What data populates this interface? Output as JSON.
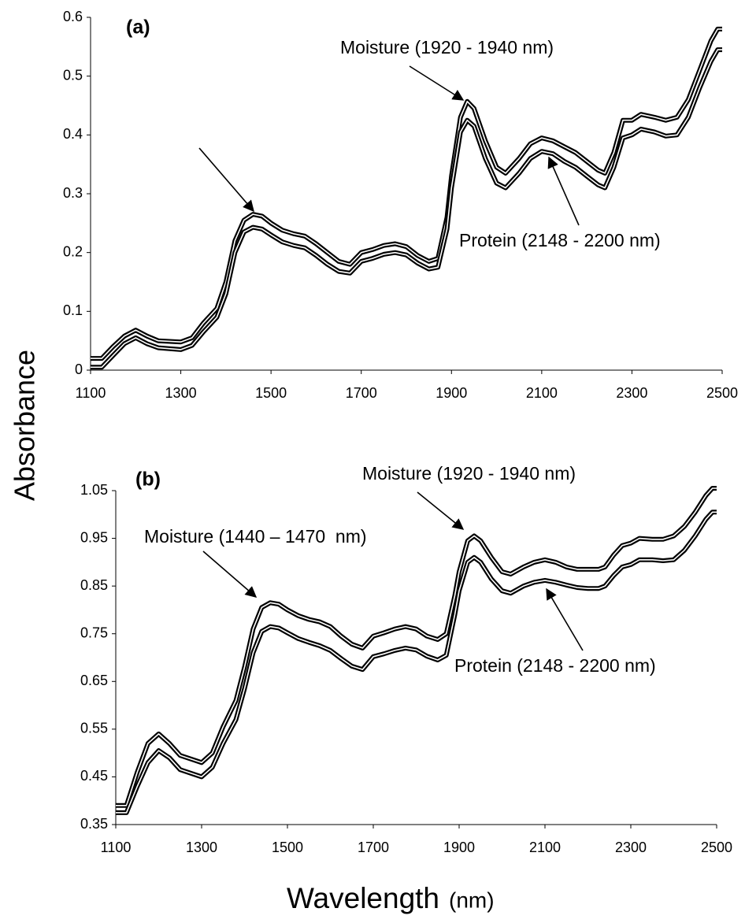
{
  "ylabel": "Absorbance",
  "xlabel": "Wavelength",
  "xlabel_unit": "(nm)",
  "chart_data": [
    {
      "type": "line",
      "title": "(a)",
      "annotations": [
        "Moisture (1920 - 1940 nm)",
        "Protein (2148 - 2200 nm)"
      ],
      "x": [
        1100,
        1125,
        1150,
        1175,
        1200,
        1225,
        1250,
        1300,
        1325,
        1350,
        1380,
        1400,
        1420,
        1440,
        1460,
        1480,
        1500,
        1525,
        1550,
        1575,
        1600,
        1625,
        1650,
        1675,
        1700,
        1725,
        1750,
        1775,
        1800,
        1825,
        1850,
        1870,
        1890,
        1900,
        1920,
        1935,
        1950,
        1975,
        2000,
        2020,
        2050,
        2075,
        2100,
        2125,
        2150,
        2175,
        2200,
        2225,
        2240,
        2260,
        2280,
        2300,
        2320,
        2350,
        2375,
        2400,
        2425,
        2450,
        2475,
        2490,
        2500
      ],
      "series": [
        {
          "color": "#000000",
          "values": [
            0.02,
            0.02,
            0.04,
            0.058,
            0.068,
            0.058,
            0.05,
            0.048,
            0.055,
            0.08,
            0.105,
            0.15,
            0.22,
            0.255,
            0.265,
            0.262,
            0.25,
            0.238,
            0.232,
            0.228,
            0.215,
            0.2,
            0.185,
            0.18,
            0.2,
            0.205,
            0.212,
            0.215,
            0.21,
            0.195,
            0.185,
            0.19,
            0.26,
            0.33,
            0.43,
            0.457,
            0.445,
            0.39,
            0.345,
            0.335,
            0.36,
            0.385,
            0.395,
            0.39,
            0.38,
            0.37,
            0.355,
            0.34,
            0.335,
            0.37,
            0.425,
            0.425,
            0.435,
            0.43,
            0.425,
            0.43,
            0.46,
            0.51,
            0.56,
            0.58,
            0.58
          ]
        },
        {
          "color": "#000000",
          "values": [
            0.005,
            0.005,
            0.025,
            0.045,
            0.055,
            0.045,
            0.038,
            0.035,
            0.042,
            0.065,
            0.09,
            0.13,
            0.2,
            0.235,
            0.243,
            0.24,
            0.23,
            0.218,
            0.212,
            0.208,
            0.195,
            0.18,
            0.168,
            0.165,
            0.185,
            0.19,
            0.197,
            0.2,
            0.196,
            0.182,
            0.172,
            0.175,
            0.24,
            0.31,
            0.405,
            0.425,
            0.415,
            0.36,
            0.318,
            0.31,
            0.335,
            0.36,
            0.372,
            0.368,
            0.355,
            0.345,
            0.33,
            0.315,
            0.31,
            0.345,
            0.395,
            0.4,
            0.41,
            0.405,
            0.398,
            0.4,
            0.43,
            0.48,
            0.525,
            0.545,
            0.545
          ]
        }
      ],
      "xlim": [
        1100,
        2500
      ],
      "xticks": [
        1100,
        1300,
        1500,
        1700,
        1900,
        2100,
        2300,
        2500
      ],
      "ylim": [
        0,
        0.6
      ],
      "yticks": [
        0,
        0.1,
        0.2,
        0.3,
        0.4,
        0.5,
        0.6
      ]
    },
    {
      "type": "line",
      "title": "(b)",
      "annotations": [
        "Moisture (1920 - 1940 nm)",
        "Moisture (1440 – 1470  nm)",
        "Protein (2148 - 2200 nm)"
      ],
      "x": [
        1100,
        1125,
        1150,
        1175,
        1200,
        1225,
        1250,
        1300,
        1325,
        1350,
        1380,
        1400,
        1420,
        1440,
        1460,
        1480,
        1500,
        1525,
        1550,
        1575,
        1600,
        1625,
        1650,
        1675,
        1700,
        1725,
        1750,
        1775,
        1800,
        1825,
        1850,
        1870,
        1890,
        1900,
        1920,
        1935,
        1950,
        1975,
        2000,
        2020,
        2050,
        2075,
        2100,
        2125,
        2150,
        2175,
        2200,
        2225,
        2240,
        2260,
        2280,
        2300,
        2320,
        2350,
        2375,
        2400,
        2425,
        2450,
        2475,
        2490,
        2500
      ],
      "series": [
        {
          "color": "#000000",
          "values": [
            0.39,
            0.39,
            0.46,
            0.52,
            0.54,
            0.52,
            0.495,
            0.48,
            0.5,
            0.555,
            0.61,
            0.68,
            0.76,
            0.805,
            0.815,
            0.812,
            0.8,
            0.788,
            0.78,
            0.775,
            0.765,
            0.745,
            0.728,
            0.72,
            0.745,
            0.752,
            0.76,
            0.765,
            0.76,
            0.745,
            0.738,
            0.75,
            0.83,
            0.88,
            0.945,
            0.955,
            0.945,
            0.91,
            0.88,
            0.875,
            0.89,
            0.9,
            0.905,
            0.9,
            0.89,
            0.885,
            0.885,
            0.885,
            0.89,
            0.915,
            0.935,
            0.94,
            0.95,
            0.948,
            0.948,
            0.955,
            0.975,
            1.005,
            1.04,
            1.055,
            1.055
          ]
        },
        {
          "color": "#000000",
          "values": [
            0.375,
            0.375,
            0.43,
            0.48,
            0.505,
            0.49,
            0.465,
            0.45,
            0.47,
            0.52,
            0.57,
            0.635,
            0.71,
            0.755,
            0.765,
            0.762,
            0.752,
            0.74,
            0.732,
            0.725,
            0.715,
            0.698,
            0.682,
            0.675,
            0.702,
            0.708,
            0.715,
            0.72,
            0.716,
            0.703,
            0.695,
            0.705,
            0.79,
            0.84,
            0.9,
            0.91,
            0.9,
            0.865,
            0.84,
            0.835,
            0.85,
            0.858,
            0.862,
            0.858,
            0.852,
            0.847,
            0.845,
            0.845,
            0.85,
            0.872,
            0.89,
            0.895,
            0.905,
            0.905,
            0.903,
            0.905,
            0.925,
            0.955,
            0.99,
            1.005,
            1.005
          ]
        }
      ],
      "xlim": [
        1100,
        2500
      ],
      "xticks": [
        1100,
        1300,
        1500,
        1700,
        1900,
        2100,
        2300,
        2500
      ],
      "ylim": [
        0.35,
        1.05
      ],
      "yticks": [
        0.35,
        0.45,
        0.55,
        0.65,
        0.75,
        0.85,
        0.95,
        1.05
      ]
    }
  ]
}
